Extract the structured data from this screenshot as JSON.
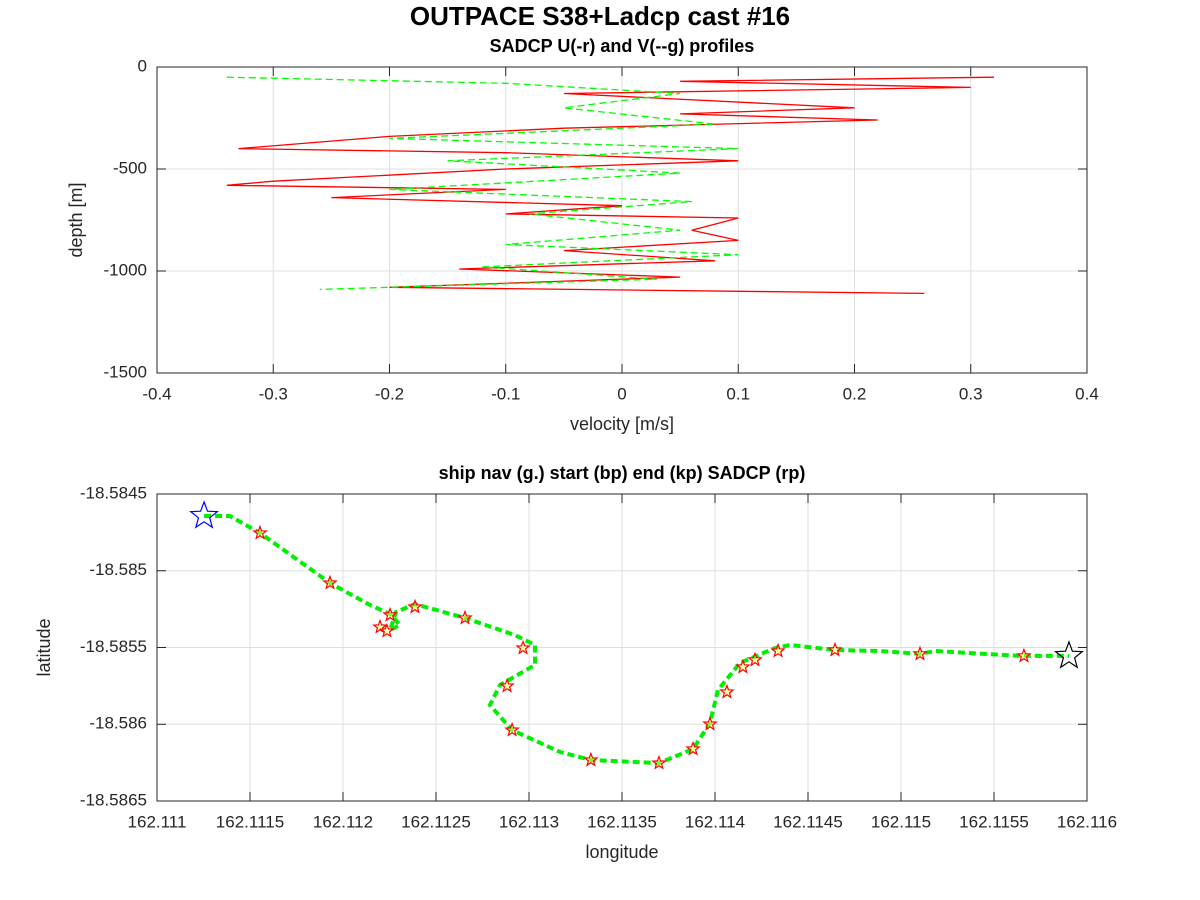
{
  "title": "OUTPACE S38+Ladcp cast #16",
  "chart_data": [
    {
      "type": "line",
      "title": "SADCP U(-r) and V(--g) profiles",
      "xlabel": "velocity [m/s]",
      "ylabel": "depth [m]",
      "xlim": [
        -0.4,
        0.4
      ],
      "xticks": [
        -0.4,
        -0.3,
        -0.2,
        -0.1,
        0,
        0.1,
        0.2,
        0.3,
        0.4
      ],
      "ylim": [
        -1500,
        0
      ],
      "yticks": [
        -1500,
        -1000,
        -500,
        0
      ],
      "grid": true,
      "series": [
        {
          "color": "#ff0000",
          "dashed": false,
          "x": [
            0.32,
            0.05,
            0.3,
            -0.05,
            0.2,
            0.05,
            0.22,
            -0.05,
            -0.2,
            -0.33,
            -0.1,
            0.1,
            -0.1,
            -0.3,
            -0.34,
            -0.1,
            -0.25,
            0,
            -0.1,
            0.1,
            0.06,
            0.1,
            -0.05,
            0.08,
            -0.14,
            0.05,
            -0.2,
            0.26
          ],
          "values": [
            -50,
            -70,
            -100,
            -130,
            -200,
            -230,
            -260,
            -300,
            -340,
            -400,
            -420,
            -460,
            -500,
            -560,
            -580,
            -600,
            -640,
            -680,
            -720,
            -740,
            -800,
            -850,
            -900,
            -950,
            -990,
            -1030,
            -1080,
            -1110
          ]
        },
        {
          "color": "#00ff00",
          "dashed": true,
          "x": [
            -0.34,
            -0.1,
            0.05,
            -0.05,
            0.08,
            -0.2,
            0.1,
            -0.15,
            0.05,
            -0.2,
            0.06,
            -0.08,
            0.05,
            -0.1,
            0.1,
            -0.12,
            0.03,
            -0.26
          ],
          "values": [
            -50,
            -80,
            -130,
            -200,
            -280,
            -350,
            -400,
            -460,
            -520,
            -600,
            -660,
            -720,
            -800,
            -870,
            -920,
            -980,
            -1040,
            -1090
          ]
        }
      ]
    },
    {
      "type": "scatter",
      "title": "ship nav (g.) start (bp) end (kp) SADCP (rp)",
      "xlabel": "longitude",
      "ylabel": "latitude",
      "xlim": [
        162.111,
        162.116
      ],
      "xticks": [
        162.111,
        162.1115,
        162.112,
        162.1125,
        162.113,
        162.1135,
        162.114,
        162.1145,
        162.115,
        162.1155,
        162.116
      ],
      "ylim": [
        -18.5865,
        -18.5845
      ],
      "yticks": [
        -18.5865,
        -18.586,
        -18.5855,
        -18.585,
        -18.5845
      ],
      "grid": true,
      "series": [
        {
          "color": "#00ee00",
          "marker": "track",
          "x": [
            162.111253,
            162.111392,
            162.111554,
            162.11193,
            162.112145,
            162.112253,
            162.112306,
            162.112253,
            162.112285,
            162.112387,
            162.112656,
            162.112925,
            162.113032,
            162.113032,
            162.112844,
            162.11279,
            162.112909,
            162.113167,
            162.113333,
            162.113699,
            162.113882,
            162.113973,
            162.114016,
            162.114134,
            162.114323,
            162.114403,
            162.114645,
            162.114887,
            162.115102,
            162.115183,
            162.11564,
            162.115903
          ],
          "values": [
            -18.584643,
            -18.584643,
            -18.584754,
            -18.58508,
            -18.585223,
            -18.585282,
            -18.585353,
            -18.585386,
            -18.585269,
            -18.585217,
            -18.585308,
            -18.585419,
            -18.585484,
            -18.585614,
            -18.585744,
            -18.585875,
            -18.586038,
            -18.586181,
            -18.586233,
            -18.586253,
            -18.586161,
            -18.585992,
            -18.585777,
            -18.585601,
            -18.585503,
            -18.585484,
            -18.585516,
            -18.585523,
            -18.585542,
            -18.585523,
            -18.585555,
            -18.585555
          ]
        },
        {
          "color": "#ff0000",
          "marker": "star",
          "x": [
            162.111554,
            162.11193,
            162.112199,
            162.112236,
            162.112253,
            162.112387,
            162.112656,
            162.112968,
            162.112882,
            162.112909,
            162.113333,
            162.113699,
            162.113882,
            162.113973,
            162.114064,
            162.11415,
            162.114215,
            162.114339,
            162.114645,
            162.115102,
            162.115661
          ],
          "values": [
            -18.584754,
            -18.58508,
            -18.585367,
            -18.585393,
            -18.585288,
            -18.585236,
            -18.585308,
            -18.585503,
            -18.585751,
            -18.586038,
            -18.586233,
            -18.586253,
            -18.586161,
            -18.585999,
            -18.58579,
            -18.585627,
            -18.585581,
            -18.585523,
            -18.585516,
            -18.585542,
            -18.585555
          ]
        },
        {
          "color": "#0000ff",
          "marker": "bigstar",
          "x": [
            162.111253
          ],
          "values": [
            -18.584643
          ]
        },
        {
          "color": "#000000",
          "marker": "bigstar",
          "x": [
            162.115903
          ],
          "values": [
            -18.585555
          ]
        }
      ]
    }
  ]
}
